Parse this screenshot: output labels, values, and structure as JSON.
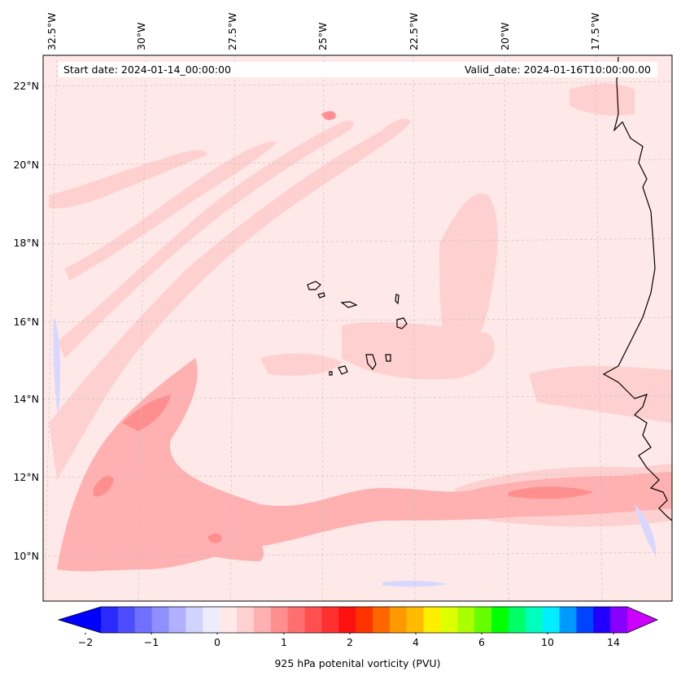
{
  "header": {
    "start_date": "Start date: 2024-01-14_00:00:00",
    "valid_date": "Valid_date: 2024-01-16T10:00:00.00"
  },
  "map": {
    "region": "Eastern tropical Atlantic (Cape Verde / West Africa)",
    "lon_labels": [
      "32.5°W",
      "30°W",
      "27.5°W",
      "25°W",
      "22.5°W",
      "20°W",
      "17.5°W"
    ],
    "lat_labels": [
      "22°N",
      "20°N",
      "18°N",
      "16°N",
      "14°N",
      "12°N",
      "10°N"
    ],
    "gridlines": true,
    "field": "925 hPa potential vorticity",
    "background_color": "#ffe8e8"
  },
  "colorbar": {
    "title": "925 hPa potenital vorticity (PVU)",
    "tick_labels": [
      "−2",
      "−1",
      "0",
      "1",
      "2",
      "4",
      "6",
      "10",
      "14"
    ],
    "colors": [
      "#0000ff",
      "#2a2aff",
      "#4d4dff",
      "#7070ff",
      "#8f8fff",
      "#b0b0ff",
      "#d2d2ff",
      "#ececff",
      "#ffe8e8",
      "#ffd0d0",
      "#ffb0b0",
      "#ff8f8f",
      "#ff6f6f",
      "#ff5050",
      "#ff3030",
      "#ff1010",
      "#ff3300",
      "#ff6600",
      "#ff9900",
      "#ffbb00",
      "#ffee00",
      "#ddff00",
      "#aaff00",
      "#66ff00",
      "#00ff00",
      "#00ff66",
      "#00ffbb",
      "#00eeff",
      "#0099ff",
      "#0044ff",
      "#2200ff",
      "#8800ff",
      "#cc00ff"
    ]
  }
}
